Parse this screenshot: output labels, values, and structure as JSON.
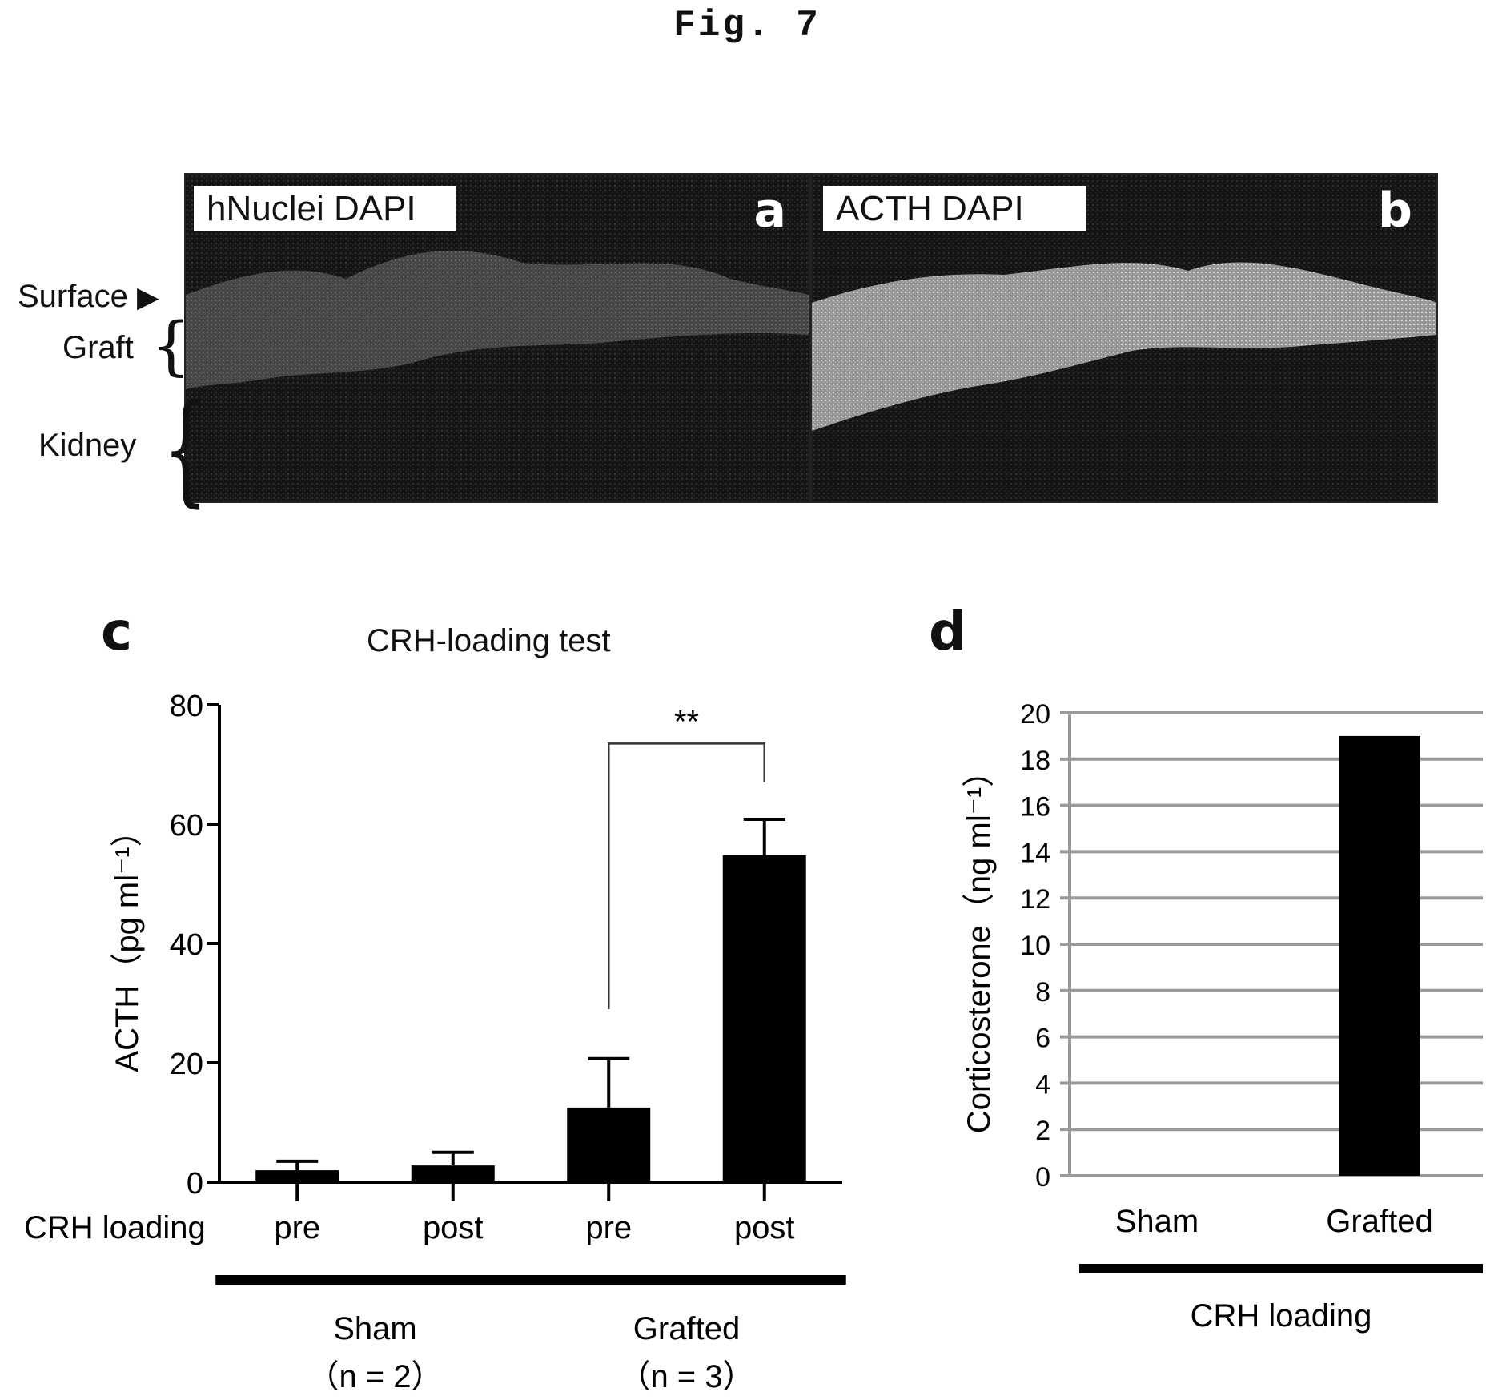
{
  "figure_title": "Fig. 7",
  "panels": {
    "a": {
      "letter": "a",
      "label": "hNuclei DAPI"
    },
    "b": {
      "letter": "b",
      "label": "ACTH DAPI"
    }
  },
  "tissue_labels": {
    "surface": "Surface",
    "graft": "Graft",
    "kidney": "Kidney"
  },
  "colors": {
    "bars": "#000000",
    "grid": "#9a9a9a",
    "micrograph_bg": "#0a0a0a",
    "graft_tissue": "#d8d8d8"
  },
  "chart_data": [
    {
      "panel": "c",
      "type": "bar",
      "title": "CRH-loading test",
      "ylabel": "ACTH（pg ml⁻¹）",
      "row_label": "CRH loading",
      "categories": [
        "pre",
        "post",
        "pre",
        "post"
      ],
      "values": [
        2,
        2.8,
        12.5,
        54.8
      ],
      "errors": [
        1.5,
        2.2,
        8.2,
        6
      ],
      "ylim": [
        0,
        80
      ],
      "yticks": [
        0,
        20,
        40,
        60,
        80
      ],
      "groups": [
        {
          "name": "Sham",
          "n_label": "（n = 2）",
          "indices": [
            0,
            1
          ]
        },
        {
          "name": "Grafted",
          "n_label": "（n = 3）",
          "indices": [
            2,
            3
          ]
        }
      ],
      "significance": {
        "label": "**",
        "between": [
          2,
          3
        ]
      }
    },
    {
      "panel": "d",
      "type": "bar",
      "ylabel": "Corticosterone（ng ml⁻¹）",
      "xlabel": "CRH loading",
      "categories": [
        "Sham",
        "Grafted"
      ],
      "values": [
        0,
        19
      ],
      "ylim": [
        0,
        20
      ],
      "yticks": [
        0,
        2,
        4,
        6,
        8,
        10,
        12,
        14,
        16,
        18,
        20
      ],
      "grid": true
    }
  ]
}
